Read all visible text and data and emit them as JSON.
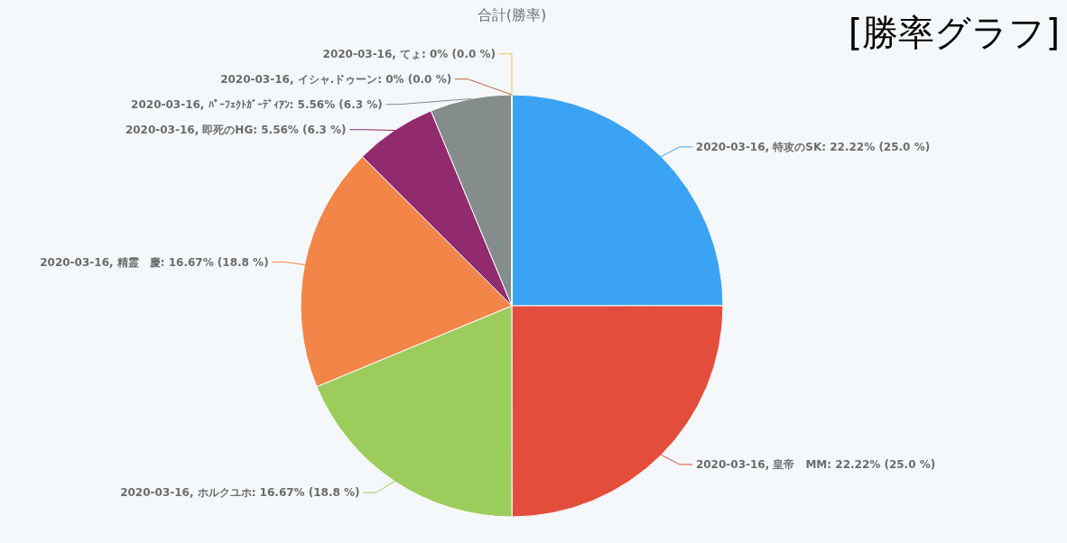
{
  "chart_data": {
    "type": "pie",
    "title": "合計(勝率)",
    "annotations": [
      "[勝率グラフ]"
    ],
    "categories": [
      "2020-03-16, 特攻のSK",
      "2020-03-16, 皇帝　MM",
      "2020-03-16, ホルクユホ",
      "2020-03-16, 精霊　慶",
      "2020-03-16, 即死のHG",
      "2020-03-16, ﾊﾟｰﾌｪｸﾄｶﾞｰﾃﾞｨｱﾝ",
      "2020-03-16, イシャ.ドゥーン",
      "2020-03-16, てょ"
    ],
    "values": [
      22.22,
      22.22,
      16.67,
      16.67,
      5.56,
      5.56,
      0,
      0
    ],
    "colors": [
      "#3aa3f3",
      "#e44c3b",
      "#9ccc5c",
      "#f48548",
      "#922a6e",
      "#858c8c",
      "#b8643c",
      "#f2c14e"
    ],
    "value_labels": [
      ": 22.22% (25.0 %)",
      ": 22.22% (25.0 %)",
      ": 16.67% (18.8 %)",
      ": 16.67% (18.8 %)",
      ": 5.56% (6.3 %)",
      ": 5.56% (6.3 %)",
      ": 0% (0.0 %)",
      ": 0% (0.0 %)"
    ]
  }
}
